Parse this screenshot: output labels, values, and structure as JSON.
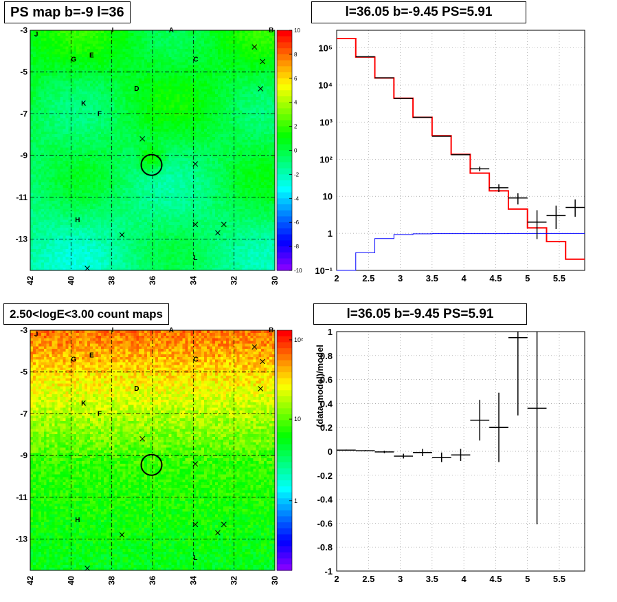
{
  "titles": {
    "ps_map": "PS map b=-9 l=36",
    "count_map": "2.50<logE<3.00 count maps",
    "spectrum": "l=36.05 b=-9.45 PS=5.91",
    "residual": "l=36.05 b=-9.45 PS=5.91"
  },
  "map_common": {
    "x_range": [
      42,
      30
    ],
    "y_range": [
      -14.5,
      -3
    ],
    "x_ticks": [
      "42",
      "40",
      "38",
      "36",
      "34",
      "32",
      "30"
    ],
    "y_ticks": [
      "-3",
      "-5",
      "-7",
      "-9",
      "-11",
      "-13"
    ],
    "source_labels": [
      {
        "t": "J",
        "l": 41.8,
        "b": -3.3
      },
      {
        "t": "I",
        "l": 38.0,
        "b": -3.1
      },
      {
        "t": "A",
        "l": 35.2,
        "b": -3.1
      },
      {
        "t": "B",
        "l": 30.3,
        "b": -3.1
      },
      {
        "t": "G",
        "l": 40.0,
        "b": -4.5
      },
      {
        "t": "E",
        "l": 39.1,
        "b": -4.3
      },
      {
        "t": "C",
        "l": 34.0,
        "b": -4.5
      },
      {
        "t": "D",
        "l": 36.9,
        "b": -5.9
      },
      {
        "t": "K",
        "l": 39.5,
        "b": -6.6
      },
      {
        "t": "F",
        "l": 38.7,
        "b": -7.1
      },
      {
        "t": "H",
        "l": 39.8,
        "b": -12.2
      },
      {
        "t": "L",
        "l": 34.0,
        "b": -14.0
      }
    ],
    "crosses": [
      {
        "l": 31.0,
        "b": -3.8
      },
      {
        "l": 30.6,
        "b": -4.5
      },
      {
        "l": 30.7,
        "b": -5.8
      },
      {
        "l": 36.5,
        "b": -8.2
      },
      {
        "l": 33.9,
        "b": -9.4
      },
      {
        "l": 33.9,
        "b": -12.3
      },
      {
        "l": 32.8,
        "b": -12.7
      },
      {
        "l": 32.5,
        "b": -12.3
      },
      {
        "l": 37.5,
        "b": -12.8
      },
      {
        "l": 39.2,
        "b": -14.4
      }
    ],
    "circle": {
      "l": 36.05,
      "b": -9.45
    }
  },
  "colorbar_ps": {
    "ticks": [
      "10",
      "8",
      "6",
      "4",
      "2",
      "0",
      "-2",
      "-4",
      "-6",
      "-8",
      "-10"
    ]
  },
  "colorbar_count": {
    "ticks": [
      "10²",
      "10",
      "1"
    ]
  },
  "chart_data": [
    {
      "type": "line",
      "subtype": "histogram",
      "title": "l=36.05 b=-9.45 PS=5.91",
      "xlim": [
        2,
        5.9
      ],
      "ylim": [
        0.1,
        300000
      ],
      "yscale": "log",
      "grid": true,
      "x_ticks": [
        "2",
        "2.5",
        "3",
        "3.5",
        "4",
        "4.5",
        "5",
        "5.5"
      ],
      "y_ticks": [
        "10⁻¹",
        "1",
        "10",
        "10²",
        "10³",
        "10⁴",
        "10⁵"
      ],
      "bin_edges": [
        2.0,
        2.3,
        2.6,
        2.9,
        3.2,
        3.5,
        3.8,
        4.1,
        4.4,
        4.7,
        5.0,
        5.3,
        5.6,
        5.9
      ],
      "series": [
        {
          "color": "#ff0000",
          "values": [
            180000,
            57000,
            15500,
            4400,
            1350,
            430,
            135,
            42,
            14,
            4.5,
            1.4,
            0.6,
            0.2
          ]
        },
        {
          "color": "#0000ff",
          "values": [
            0.1,
            0.3,
            0.72,
            0.93,
            0.97,
            0.98,
            0.98,
            0.98,
            0.98,
            0.99,
            0.99,
            0.99,
            0.99
          ]
        },
        {
          "color": "#000000",
          "x": [
            2.45,
            2.75,
            3.05,
            3.35,
            3.65,
            3.95,
            4.25,
            4.55,
            4.85,
            5.15,
            5.45,
            5.75
          ],
          "y": [
            58000,
            15600,
            4350,
            1350,
            415,
            132,
            55,
            17,
            9,
            2.0,
            3.0,
            5.0
          ],
          "err_low": [
            0,
            0,
            0,
            0,
            0,
            0,
            8,
            4,
            3,
            1.3,
            1.7,
            2.2
          ],
          "err_high": [
            0,
            0,
            0,
            0,
            0,
            0,
            8,
            4,
            3,
            2.2,
            2.6,
            3.2
          ]
        }
      ]
    },
    {
      "type": "scatter",
      "subtype": "errorbar",
      "title": "l=36.05 b=-9.45 PS=5.91",
      "ylabel": "(data-model)/model",
      "xlim": [
        2,
        5.9
      ],
      "ylim": [
        -1,
        1
      ],
      "grid": true,
      "x_ticks": [
        "2",
        "2.5",
        "3",
        "3.5",
        "4",
        "4.5",
        "5",
        "5.5"
      ],
      "y_ticks": [
        "1",
        "0.8",
        "0.6",
        "0.4",
        "0.2",
        "0",
        "-0.2",
        "-0.4",
        "-0.6",
        "-0.8",
        "-1"
      ],
      "x": [
        2.15,
        2.45,
        2.75,
        3.05,
        3.35,
        3.65,
        3.95,
        4.25,
        4.55,
        4.85,
        5.15
      ],
      "y": [
        0.01,
        0.005,
        -0.005,
        -0.04,
        -0.01,
        -0.05,
        -0.03,
        0.26,
        0.2,
        0.95,
        0.36
      ],
      "yerr": [
        0.005,
        0.005,
        0.01,
        0.02,
        0.03,
        0.04,
        0.05,
        0.17,
        0.29,
        0.65,
        0.97
      ],
      "xerr": [
        0.15,
        0.15,
        0.15,
        0.15,
        0.15,
        0.15,
        0.15,
        0.15,
        0.15,
        0.15,
        0.15
      ]
    }
  ]
}
